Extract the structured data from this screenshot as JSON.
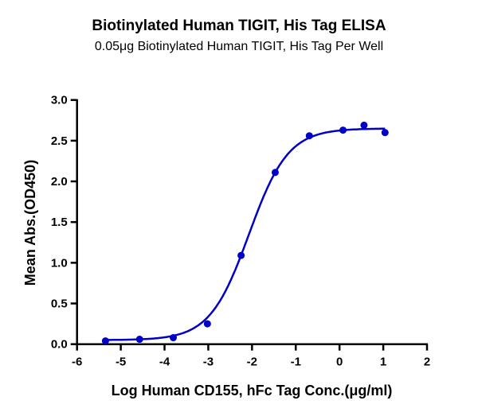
{
  "chart_data": {
    "type": "scatter",
    "title": "Biotinylated Human TIGIT, His Tag ELISA",
    "subtitle": "0.05μg Biotinylated Human TIGIT, His Tag Per Well",
    "xlabel": "Log Human CD155, hFc Tag Conc.(μg/ml)",
    "ylabel": "Mean Abs.(OD450)",
    "xlim": [
      -6,
      2
    ],
    "ylim": [
      0,
      3.0
    ],
    "xticks": [
      "-6",
      "-5",
      "-4",
      "-3",
      "-2",
      "-1",
      "0",
      "1",
      "2"
    ],
    "yticks": [
      "0.0",
      "0.5",
      "1.0",
      "1.5",
      "2.0",
      "2.5",
      "3.0"
    ],
    "grid": false,
    "fit_curve": "sigmoidal",
    "color": "#0000c8",
    "x": [
      -5.35,
      -4.57,
      -3.8,
      -3.02,
      -2.25,
      -1.47,
      -0.69,
      0.08,
      0.56,
      1.04
    ],
    "y": [
      0.04,
      0.06,
      0.08,
      0.25,
      1.09,
      2.11,
      2.56,
      2.63,
      2.69,
      2.6
    ]
  }
}
